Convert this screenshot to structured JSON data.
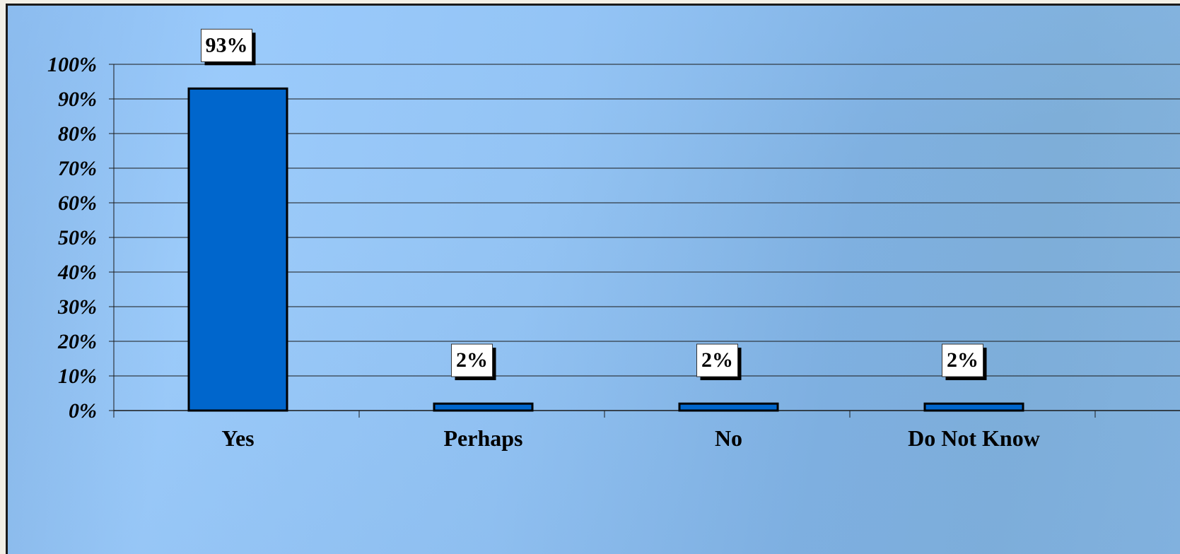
{
  "chart_data": {
    "type": "bar",
    "categories": [
      "Yes",
      "Perhaps",
      "No",
      "Do Not Know"
    ],
    "values": [
      93,
      2,
      2,
      2
    ],
    "data_labels": [
      "93%",
      "2%",
      "2%",
      "2%"
    ],
    "yticks": [
      "0%",
      "10%",
      "20%",
      "30%",
      "40%",
      "50%",
      "60%",
      "70%",
      "80%",
      "90%",
      "100%"
    ],
    "ylim": [
      0,
      100
    ],
    "title": "",
    "xlabel": "",
    "ylabel": "",
    "grid": true,
    "legend": "none",
    "colors": {
      "bar_fill": "#0066cc",
      "bar_stroke": "#000000",
      "gridline": "#1a1a1a",
      "label_box": "#ffffff"
    }
  }
}
